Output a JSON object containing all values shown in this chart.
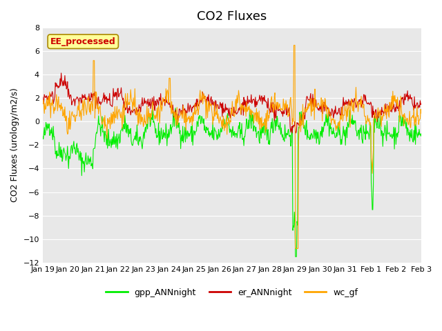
{
  "title": "CO2 Fluxes",
  "ylabel": "CO2 Fluxes (urology/m2/s)",
  "ylim": [
    -12,
    8
  ],
  "yticks": [
    -12,
    -10,
    -8,
    -6,
    -4,
    -2,
    0,
    2,
    4,
    6,
    8
  ],
  "xlabel": "",
  "xtick_labels": [
    "Jan 19",
    "Jan 20",
    "Jan 21",
    "Jan 22",
    "Jan 23",
    "Jan 24",
    "Jan 25",
    "Jan 26",
    "Jan 27",
    "Jan 28",
    "Jan 29",
    "Jan 30",
    "Jan 31",
    "Feb 1",
    "Feb 2",
    "Feb 3"
  ],
  "color_gpp": "#00EE00",
  "color_er": "#CC0000",
  "color_wc": "#FFA500",
  "linewidth": 0.8,
  "background_color": "#E8E8E8",
  "legend_box_text": "EE_processed",
  "legend_box_color": "#FFFF99",
  "legend_box_border": "#AA8800",
  "legend_items": [
    "gpp_ANNnight",
    "er_ANNnight",
    "wc_gf"
  ],
  "title_fontsize": 13,
  "axis_fontsize": 9,
  "tick_fontsize": 8
}
